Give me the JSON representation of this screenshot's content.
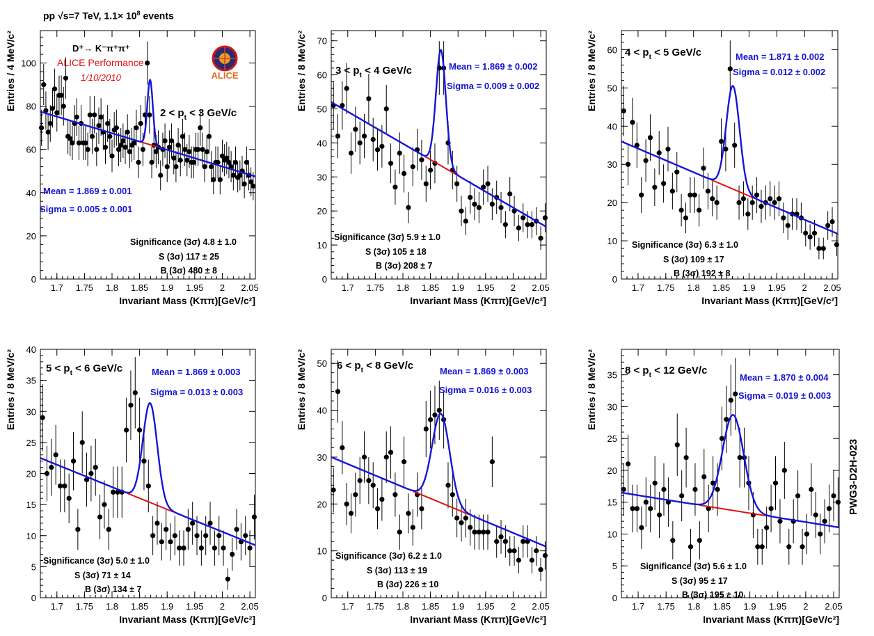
{
  "header": {
    "dataset": "pp √s=7 TeV, 1.1× 10",
    "dataset_exp": "8",
    "events": " events"
  },
  "label": {
    "decay": "D⁺→ K⁻π⁺π⁺",
    "performance": "ALICE Performance",
    "date": "1/10/2010",
    "logo_text": "ALICE",
    "side_tag": "PWG3-D2H-023"
  },
  "colors": {
    "data": "#000000",
    "signal_fit": "#1515d8",
    "background_fit": "#e01010",
    "stat_text": "#1414d2",
    "label_red": "#e01010"
  },
  "chart_data": [
    {
      "type": "scatter",
      "title": "2 < p_t < 3 GeV/c",
      "xlabel": "Invariant Mass (Kππ)[GeV/c²]",
      "ylabel": "Entries / 4 MeV/c²",
      "xlim": [
        1.67,
        2.06
      ],
      "ylim": [
        0,
        115
      ],
      "xticks": [
        1.7,
        1.75,
        1.8,
        1.85,
        1.9,
        1.95,
        2.0,
        2.05
      ],
      "xtick_labels": [
        "1.7",
        "1.75",
        "1.8",
        "1.85",
        "1.9",
        "1.95",
        "2",
        "2.05"
      ],
      "yticks": [
        0,
        20,
        40,
        60,
        80,
        100
      ],
      "bin_width": 0.004,
      "x": [
        1.672,
        1.676,
        1.68,
        1.684,
        1.688,
        1.692,
        1.696,
        1.7,
        1.704,
        1.708,
        1.712,
        1.716,
        1.72,
        1.724,
        1.728,
        1.732,
        1.736,
        1.74,
        1.744,
        1.748,
        1.752,
        1.756,
        1.76,
        1.764,
        1.768,
        1.772,
        1.776,
        1.78,
        1.784,
        1.788,
        1.792,
        1.796,
        1.8,
        1.804,
        1.808,
        1.812,
        1.816,
        1.82,
        1.824,
        1.828,
        1.832,
        1.836,
        1.84,
        1.844,
        1.848,
        1.852,
        1.856,
        1.86,
        1.864,
        1.868,
        1.872,
        1.876,
        1.88,
        1.884,
        1.888,
        1.892,
        1.896,
        1.9,
        1.904,
        1.908,
        1.912,
        1.916,
        1.92,
        1.924,
        1.928,
        1.932,
        1.936,
        1.94,
        1.944,
        1.948,
        1.952,
        1.956,
        1.96,
        1.964,
        1.968,
        1.972,
        1.976,
        1.98,
        1.984,
        1.988,
        1.992,
        1.996,
        2.0,
        2.004,
        2.008,
        2.012,
        2.016,
        2.02,
        2.024,
        2.028,
        2.032,
        2.036,
        2.04,
        2.044,
        2.048,
        2.052,
        2.056
      ],
      "y": [
        70,
        90,
        78,
        68,
        72,
        79,
        88,
        77,
        85,
        85,
        80,
        93,
        66,
        65,
        63,
        72,
        75,
        63,
        72,
        63,
        63,
        60,
        76,
        66,
        76,
        60,
        71,
        75,
        68,
        61,
        72,
        66,
        57,
        69,
        70,
        60,
        62,
        64,
        61,
        68,
        59,
        62,
        63,
        70,
        54,
        72,
        60,
        76,
        100,
        76,
        54,
        62,
        59,
        61,
        48,
        60,
        64,
        52,
        61,
        64,
        56,
        52,
        62,
        55,
        66,
        60,
        55,
        59,
        54,
        54,
        60,
        60,
        70,
        60,
        52,
        59,
        66,
        52,
        46,
        54,
        54,
        46,
        57,
        55,
        56,
        54,
        52,
        48,
        54,
        47,
        48,
        50,
        44,
        54,
        48,
        45,
        43
      ],
      "fit": {
        "bkg_a": 77.5,
        "bkg_b": -77.0,
        "x0": 1.67,
        "amp": 30.0,
        "mean": 1.869,
        "sigma": 0.005
      },
      "stats": {
        "mean": "Mean = 1.869 ± 0.001",
        "sigma": "Sigma = 0.005 ± 0.001"
      },
      "significance": [
        "Significance (3σ) 4.8 ± 1.0",
        "S (3σ) 117 ± 25",
        "B (3σ) 480 ± 8"
      ]
    },
    {
      "type": "scatter",
      "title": "3 < p_t < 4 GeV/c",
      "xlabel": "Invariant Mass (Kππ)[GeV/c²]",
      "ylabel": "Entries / 8 MeV/c²",
      "xlim": [
        1.67,
        2.06
      ],
      "ylim": [
        0,
        73
      ],
      "xticks": [
        1.7,
        1.75,
        1.8,
        1.85,
        1.9,
        1.95,
        2.0,
        2.05
      ],
      "xtick_labels": [
        "1.7",
        "1.75",
        "1.8",
        "1.85",
        "1.9",
        "1.95",
        "2",
        "2.05"
      ],
      "yticks": [
        0,
        10,
        20,
        30,
        40,
        50,
        60,
        70
      ],
      "bin_width": 0.008,
      "x": [
        1.674,
        1.682,
        1.69,
        1.698,
        1.706,
        1.714,
        1.722,
        1.73,
        1.738,
        1.746,
        1.754,
        1.762,
        1.77,
        1.778,
        1.786,
        1.794,
        1.802,
        1.81,
        1.818,
        1.826,
        1.834,
        1.842,
        1.85,
        1.858,
        1.866,
        1.874,
        1.882,
        1.89,
        1.898,
        1.906,
        1.914,
        1.922,
        1.93,
        1.938,
        1.946,
        1.954,
        1.962,
        1.97,
        1.978,
        1.986,
        1.994,
        2.002,
        2.01,
        2.018,
        2.026,
        2.034,
        2.042,
        2.05,
        2.058
      ],
      "y": [
        51,
        42,
        51,
        56,
        37,
        44,
        40,
        42,
        53,
        41,
        38,
        39,
        50,
        34,
        27,
        37,
        31,
        21,
        33,
        38,
        35,
        28,
        32,
        34,
        62,
        62,
        40,
        32,
        28,
        20,
        17,
        24,
        22,
        21,
        27,
        28,
        22,
        24,
        21,
        16,
        25,
        20,
        15,
        18,
        16,
        16,
        17,
        12,
        18
      ],
      "fit": {
        "bkg_a": 52.0,
        "bkg_b": -94.0,
        "x0": 1.67,
        "amp": 34.0,
        "mean": 1.869,
        "sigma": 0.009
      },
      "stats": {
        "mean": "Mean = 1.869 ± 0.002",
        "sigma": "Sigma = 0.009 ± 0.002"
      },
      "significance": [
        "Significance (3σ) 5.9 ± 1.0",
        "S (3σ) 105 ± 18",
        "B (3σ) 208 ± 7"
      ]
    },
    {
      "type": "scatter",
      "title": "4 < p_t < 5 GeV/c",
      "xlabel": "Invariant Mass (Kππ)[GeV/c²]",
      "ylabel": "Entries / 8 MeV/c²",
      "xlim": [
        1.67,
        2.06
      ],
      "ylim": [
        0,
        65
      ],
      "xticks": [
        1.7,
        1.75,
        1.8,
        1.85,
        1.9,
        1.95,
        2.0,
        2.05
      ],
      "xtick_labels": [
        "1.7",
        "1.75",
        "1.8",
        "1.85",
        "1.9",
        "1.95",
        "2",
        "2.05"
      ],
      "yticks": [
        0,
        10,
        20,
        30,
        40,
        50,
        60
      ],
      "bin_width": 0.008,
      "x": [
        1.674,
        1.682,
        1.69,
        1.698,
        1.706,
        1.714,
        1.722,
        1.73,
        1.738,
        1.746,
        1.754,
        1.762,
        1.77,
        1.778,
        1.786,
        1.794,
        1.802,
        1.81,
        1.818,
        1.826,
        1.834,
        1.842,
        1.85,
        1.858,
        1.866,
        1.874,
        1.882,
        1.89,
        1.898,
        1.906,
        1.914,
        1.922,
        1.93,
        1.938,
        1.946,
        1.954,
        1.962,
        1.97,
        1.978,
        1.986,
        1.994,
        2.002,
        2.01,
        2.018,
        2.026,
        2.034,
        2.042,
        2.05,
        2.058
      ],
      "y": [
        44,
        30,
        41,
        35,
        22,
        31,
        37,
        24,
        33,
        25,
        34,
        23,
        28,
        18,
        16,
        22,
        22,
        18,
        29,
        23,
        21,
        20,
        36,
        34,
        55,
        35,
        20,
        21,
        17,
        20,
        22,
        19,
        20,
        21,
        20,
        21,
        16,
        14,
        17,
        17,
        16,
        12,
        11,
        12,
        8,
        8,
        14,
        15,
        9
      ],
      "fit": {
        "bkg_a": 36.0,
        "bkg_b": -62.0,
        "x0": 1.67,
        "amp": 27.0,
        "mean": 1.871,
        "sigma": 0.012
      },
      "stats": {
        "mean": "Mean = 1.871 ± 0.002",
        "sigma": "Sigma = 0.012 ± 0.002"
      },
      "significance": [
        "Significance (3σ) 6.3 ± 1.0",
        "S (3σ) 109 ± 17",
        "B (3σ) 192 ± 8"
      ]
    },
    {
      "type": "scatter",
      "title": "5 < p_t < 6 GeV/c",
      "xlabel": "Invariant Mass (Kππ)[GeV/c²]",
      "ylabel": "Entries / 8 MeV/c²",
      "xlim": [
        1.67,
        2.06
      ],
      "ylim": [
        0,
        40
      ],
      "xticks": [
        1.7,
        1.75,
        1.8,
        1.85,
        1.9,
        1.95,
        2.0,
        2.05
      ],
      "xtick_labels": [
        "1.7",
        "1.75",
        "1.8",
        "1.85",
        "1.9",
        "1.95",
        "2",
        "2.05"
      ],
      "yticks": [
        0,
        5,
        10,
        15,
        20,
        25,
        30,
        35,
        40
      ],
      "bin_width": 0.008,
      "x": [
        1.674,
        1.682,
        1.69,
        1.698,
        1.706,
        1.714,
        1.722,
        1.73,
        1.738,
        1.746,
        1.754,
        1.762,
        1.77,
        1.778,
        1.786,
        1.794,
        1.802,
        1.81,
        1.818,
        1.826,
        1.834,
        1.842,
        1.85,
        1.858,
        1.866,
        1.874,
        1.882,
        1.89,
        1.898,
        1.906,
        1.914,
        1.922,
        1.93,
        1.938,
        1.946,
        1.954,
        1.962,
        1.97,
        1.978,
        1.986,
        1.994,
        2.002,
        2.01,
        2.018,
        2.026,
        2.034,
        2.042,
        2.05,
        2.058
      ],
      "y": [
        29,
        20,
        21,
        23,
        18,
        18,
        16,
        22,
        11,
        25,
        19,
        20,
        21,
        13,
        15,
        11,
        17,
        17,
        17,
        27,
        31,
        33,
        27,
        22,
        18,
        10,
        12,
        9,
        11,
        9,
        10,
        8,
        8,
        11,
        12,
        10,
        8,
        10,
        12,
        8,
        10,
        8,
        3,
        7,
        11,
        9,
        10,
        8,
        13
      ],
      "fit": {
        "bkg_a": 22.5,
        "bkg_b": -36.0,
        "x0": 1.67,
        "amp": 16.0,
        "mean": 1.869,
        "sigma": 0.013
      },
      "stats": {
        "mean": "Mean = 1.869 ± 0.003",
        "sigma": "Sigma = 0.013 ± 0.003"
      },
      "significance": [
        "Significance (3σ) 5.0 ± 1.0",
        "S (3σ) 71 ± 14",
        "B (3σ) 134 ± 7"
      ]
    },
    {
      "type": "scatter",
      "title": "6 < p_t < 8 GeV/c",
      "xlabel": "Invariant Mass (Kππ)[GeV/c²]",
      "ylabel": "Entries / 8 MeV/c²",
      "xlim": [
        1.67,
        2.06
      ],
      "ylim": [
        0,
        53
      ],
      "xticks": [
        1.7,
        1.75,
        1.8,
        1.85,
        1.9,
        1.95,
        2.0,
        2.05
      ],
      "xtick_labels": [
        "1.7",
        "1.75",
        "1.8",
        "1.85",
        "1.9",
        "1.95",
        "2",
        "2.05"
      ],
      "yticks": [
        0,
        10,
        20,
        30,
        40,
        50
      ],
      "bin_width": 0.008,
      "x": [
        1.674,
        1.682,
        1.69,
        1.698,
        1.706,
        1.714,
        1.722,
        1.73,
        1.738,
        1.746,
        1.754,
        1.762,
        1.77,
        1.778,
        1.786,
        1.794,
        1.802,
        1.81,
        1.818,
        1.826,
        1.834,
        1.842,
        1.85,
        1.858,
        1.866,
        1.874,
        1.882,
        1.89,
        1.898,
        1.906,
        1.914,
        1.922,
        1.93,
        1.938,
        1.946,
        1.954,
        1.962,
        1.97,
        1.978,
        1.986,
        1.994,
        2.002,
        2.01,
        2.018,
        2.026,
        2.034,
        2.042,
        2.05,
        2.058
      ],
      "y": [
        23,
        44,
        32,
        20,
        18,
        22,
        25,
        30,
        25,
        24,
        19,
        21,
        30,
        31,
        22,
        14,
        29,
        18,
        15,
        22,
        19,
        36,
        38,
        39,
        40,
        38,
        24,
        22,
        17,
        16,
        17,
        15,
        14,
        14,
        14,
        14,
        29,
        12,
        13,
        12,
        10,
        10,
        8,
        12,
        12,
        8,
        10,
        6,
        9
      ],
      "fit": {
        "bkg_a": 30.0,
        "bkg_b": -49.0,
        "x0": 1.67,
        "amp": 19.0,
        "mean": 1.869,
        "sigma": 0.016
      },
      "stats": {
        "mean": "Mean = 1.869 ± 0.003",
        "sigma": "Sigma = 0.016 ± 0.003"
      },
      "significance": [
        "Significance (3σ) 6.2 ± 1.0",
        "S (3σ) 113 ± 19",
        "B (3σ) 226 ± 10"
      ]
    },
    {
      "type": "scatter",
      "title": "8 < p_t < 12 GeV/c",
      "xlabel": "Invariant Mass (Kππ)[GeV/c²]",
      "ylabel": "Entries / 8 MeV/c²",
      "xlim": [
        1.67,
        2.06
      ],
      "ylim": [
        0,
        39
      ],
      "xticks": [
        1.7,
        1.75,
        1.8,
        1.85,
        1.9,
        1.95,
        2.0,
        2.05
      ],
      "xtick_labels": [
        "1.7",
        "1.75",
        "1.8",
        "1.85",
        "1.9",
        "1.95",
        "2",
        "2.05"
      ],
      "yticks": [
        0,
        5,
        10,
        15,
        20,
        25,
        30,
        35
      ],
      "bin_width": 0.008,
      "x": [
        1.674,
        1.682,
        1.69,
        1.698,
        1.706,
        1.714,
        1.722,
        1.73,
        1.738,
        1.746,
        1.754,
        1.762,
        1.77,
        1.778,
        1.786,
        1.794,
        1.802,
        1.81,
        1.818,
        1.826,
        1.834,
        1.842,
        1.85,
        1.858,
        1.866,
        1.874,
        1.882,
        1.89,
        1.898,
        1.906,
        1.914,
        1.922,
        1.93,
        1.938,
        1.946,
        1.954,
        1.962,
        1.97,
        1.978,
        1.986,
        1.994,
        2.002,
        2.01,
        2.018,
        2.026,
        2.034,
        2.042,
        2.05,
        2.058
      ],
      "y": [
        17,
        21,
        14,
        14,
        11,
        15,
        14,
        18,
        13,
        17,
        15,
        9,
        24,
        16,
        22,
        8,
        17,
        9,
        19,
        14,
        18,
        17,
        25,
        28,
        31,
        32,
        22,
        22,
        18,
        13,
        8,
        8,
        11,
        14,
        18,
        12,
        20,
        8,
        12,
        16,
        8,
        10,
        17,
        13,
        10,
        12,
        14,
        16,
        15
      ],
      "fit": {
        "bkg_a": 16.5,
        "bkg_b": -14.0,
        "x0": 1.67,
        "amp": 15.0,
        "mean": 1.87,
        "sigma": 0.019
      },
      "stats": {
        "mean": "Mean = 1.870 ± 0.004",
        "sigma": "Sigma = 0.019 ± 0.003"
      },
      "significance": [
        "Significance (3σ) 5.6 ± 1.0",
        "S (3σ) 95 ± 17",
        "B (3σ) 195 ± 10"
      ]
    }
  ]
}
